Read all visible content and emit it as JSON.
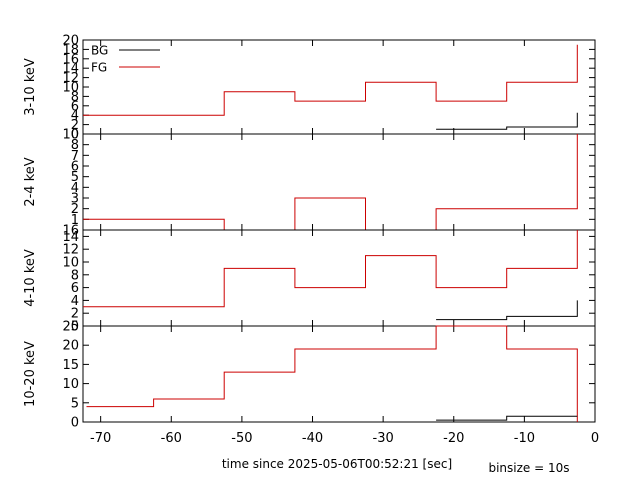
{
  "chart_data": {
    "type": "line",
    "step": true,
    "xlabel": "time since 2025-05-06T00:52:21 [sec]",
    "binsize_label": "binsize = 10s",
    "xlim": [
      -72.5,
      0
    ],
    "x_ticks": [
      -70,
      -60,
      -50,
      -40,
      -30,
      -20,
      -10,
      0
    ],
    "legend": {
      "placement": "top-left",
      "entries": [
        {
          "name": "BG",
          "color": "#000000"
        },
        {
          "name": "FG",
          "color": "#cc0000"
        }
      ]
    },
    "panels": [
      {
        "ylabel": "3-10 keV",
        "ylim": [
          0,
          20
        ],
        "y_ticks": [
          0,
          2,
          4,
          6,
          8,
          10,
          12,
          14,
          16,
          18,
          20
        ],
        "series": [
          {
            "name": "FG",
            "color": "#cc0000",
            "x": [
              -72.5,
              -52.5,
              -42.5,
              -32.5,
              -22.5,
              -12.5,
              -2.5
            ],
            "values": [
              4,
              9,
              7,
              11,
              7,
              11,
              19
            ]
          },
          {
            "name": "BG",
            "color": "#000000",
            "x": [
              -22.5,
              -12.5,
              -2.5
            ],
            "values": [
              1,
              1.5,
              4.5
            ]
          }
        ]
      },
      {
        "ylabel": "2-4 keV",
        "ylim": [
          0,
          9
        ],
        "y_ticks": [
          1,
          2,
          3,
          4,
          5,
          6,
          7,
          8
        ],
        "top_tick_label": "10",
        "series": [
          {
            "name": "FG",
            "color": "#cc0000",
            "x": [
              -72.5,
              -52.5,
              -42.5,
              -32.5,
              -22.5,
              -2.5
            ],
            "values": [
              1,
              0,
              3,
              0,
              2,
              9
            ]
          },
          {
            "name": "BG",
            "color": "#000000",
            "x": [
              -2.5
            ],
            "values": [
              9
            ]
          }
        ]
      },
      {
        "ylabel": "4-10 keV",
        "ylim": [
          0,
          15
        ],
        "y_ticks": [
          0,
          2,
          4,
          6,
          8,
          10,
          12,
          14
        ],
        "top_tick_label": "16",
        "series": [
          {
            "name": "FG",
            "color": "#cc0000",
            "x": [
              -72.5,
              -52.5,
              -42.5,
              -32.5,
              -22.5,
              -12.5,
              -2.5
            ],
            "values": [
              3,
              9,
              6,
              11,
              6,
              9,
              15
            ]
          },
          {
            "name": "BG",
            "color": "#000000",
            "x": [
              -22.5,
              -12.5,
              -2.5
            ],
            "values": [
              1,
              1.5,
              4
            ]
          }
        ]
      },
      {
        "ylabel": "10-20 keV",
        "ylim": [
          0,
          25
        ],
        "y_ticks": [
          0,
          5,
          10,
          15,
          20
        ],
        "top_tick_label": "25",
        "series": [
          {
            "name": "FG",
            "color": "#cc0000",
            "x": [
              -72,
              -62.5,
              -52.5,
              -42.5,
              -22.5,
              -12.5,
              -2.5
            ],
            "values": [
              4,
              6,
              13,
              19,
              25,
              19,
              0
            ]
          },
          {
            "name": "BG",
            "color": "#000000",
            "x": [
              -22.5,
              -12.5,
              -2.5
            ],
            "values": [
              0.5,
              1.5,
              1.5
            ]
          }
        ]
      }
    ]
  }
}
